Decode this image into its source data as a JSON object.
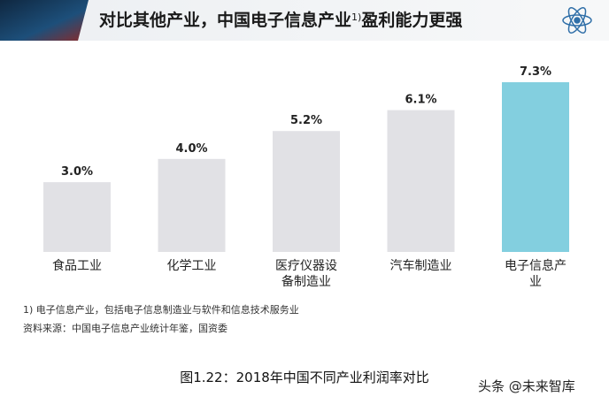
{
  "chart_data": {
    "type": "bar",
    "title": [
      "对比其他产业，中国电子信息产业",
      "1)",
      "盈利能力更强"
    ],
    "categories": [
      "食品工业",
      "化学工业",
      "医疗仪器设备制造业",
      "汽车制造业",
      "电子信息产业"
    ],
    "values": [
      3.0,
      4.0,
      5.2,
      6.1,
      7.3
    ],
    "value_labels": [
      "3.0%",
      "4.0%",
      "5.2%",
      "6.1%",
      "7.3%"
    ],
    "colors": [
      "#e1e1e5",
      "#e1e1e5",
      "#e1e1e5",
      "#e1e1e5",
      "#83cfdf"
    ],
    "footnotes": [
      "1) 电子信息产业，包括电子信息制造业与软件和信息技术服务业",
      "资料来源：中国电子信息产业统计年鉴，国资委"
    ],
    "caption": "图1.22：2018年中国不同产业利润率对比",
    "watermark": "头条 @未来智库"
  }
}
